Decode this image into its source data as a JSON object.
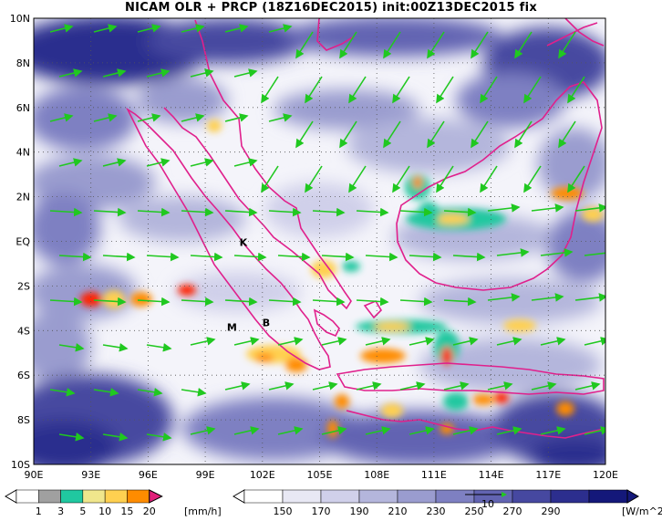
{
  "title": "NICAM OLR + PRCP (18Z16DEC2015) init:00Z13DEC2015 fix",
  "axes": {
    "lon_labels": [
      "90E",
      "93E",
      "96E",
      "99E",
      "102E",
      "105E",
      "108E",
      "111E",
      "114E",
      "117E",
      "120E"
    ],
    "lat_labels": [
      "10N",
      "8N",
      "6N",
      "4N",
      "2N",
      "EQ",
      "2S",
      "4S",
      "6S",
      "8S",
      "10S"
    ],
    "lon_range": [
      90,
      120
    ],
    "lat_range": [
      -10,
      10
    ],
    "grid": "dotted"
  },
  "places": [
    {
      "name": "K",
      "lon": 101.0,
      "lat": -0.2
    },
    {
      "name": "M",
      "lon": 100.4,
      "lat": -4.0
    },
    {
      "name": "B",
      "lon": 102.2,
      "lat": -3.8
    }
  ],
  "precip_legend": {
    "unit": "[mm/h]",
    "labels": [
      "1",
      "3",
      "5",
      "10",
      "15",
      "20"
    ],
    "colors": [
      "#a0a0a0",
      "#20c8a0",
      "#f0e68c",
      "#ffd050",
      "#ff8c00",
      "#ff2000",
      "#e0207a"
    ]
  },
  "olr_legend": {
    "unit": "[W/m^2]",
    "labels": [
      "150",
      "170",
      "190",
      "210",
      "230",
      "250",
      "270",
      "290"
    ],
    "colors": [
      "#ffffff",
      "#e8e8f4",
      "#d0d0ea",
      "#b4b6dc",
      "#9a9ccf",
      "#7e80c2",
      "#6264b2",
      "#4648a0",
      "#2c2e8e",
      "#14187a"
    ]
  },
  "vector_reference": {
    "label": "10"
  },
  "colors": {
    "coast": "#e0208c",
    "wind": "#20c820",
    "olr_dark": "#14187a"
  }
}
